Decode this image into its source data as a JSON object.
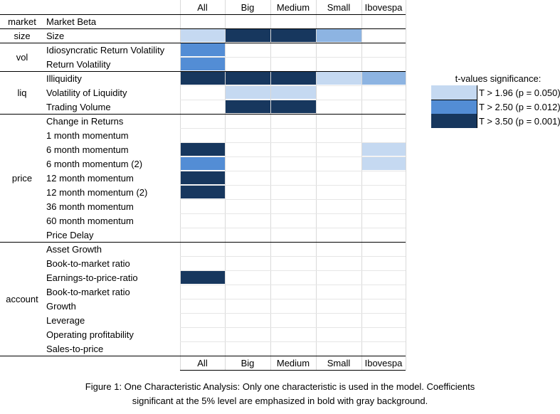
{
  "chart_data": {
    "type": "heatmap",
    "columns": [
      "All",
      "Big",
      "Medium",
      "Small",
      "Ibovespa"
    ],
    "groups": [
      {
        "name": "market",
        "rows": [
          "Market Beta"
        ]
      },
      {
        "name": "size",
        "rows": [
          "Size"
        ]
      },
      {
        "name": "vol",
        "rows": [
          "Idiosyncratic Return Volatility",
          "Return Volatility"
        ]
      },
      {
        "name": "liq",
        "rows": [
          "Illiquidity",
          "Volatility of Liquidity",
          "Trading Volume"
        ]
      },
      {
        "name": "price",
        "rows": [
          "Change in Returns",
          "1 month momentum",
          "6 month momentum",
          "6 month momentum (2)",
          "12 month momentum",
          "12 month momentum (2)",
          "36 month momentum",
          "60 month momentum",
          "Price Delay"
        ]
      },
      {
        "name": "account",
        "rows": [
          "Asset Growth",
          "Book-to-market ratio",
          "Earnings-to-price-ratio",
          "Book-to-market ratio",
          "Growth",
          "Leverage",
          "Operating profitability",
          "Sales-to-price"
        ]
      }
    ],
    "levels": [
      [
        0,
        0,
        0,
        0,
        0
      ],
      [
        1,
        3,
        3,
        2,
        0
      ],
      [
        2,
        0,
        0,
        0,
        0
      ],
      [
        2,
        0,
        0,
        0,
        0
      ],
      [
        3,
        3,
        3,
        1,
        2
      ],
      [
        0,
        1,
        1,
        0,
        0
      ],
      [
        0,
        3,
        3,
        0,
        0
      ],
      [
        0,
        0,
        0,
        0,
        0
      ],
      [
        0,
        0,
        0,
        0,
        0
      ],
      [
        3,
        0,
        0,
        0,
        1
      ],
      [
        2,
        0,
        0,
        0,
        1
      ],
      [
        3,
        0,
        0,
        0,
        0
      ],
      [
        3,
        0,
        0,
        0,
        0
      ],
      [
        0,
        0,
        0,
        0,
        0
      ],
      [
        0,
        0,
        0,
        0,
        0
      ],
      [
        0,
        0,
        0,
        0,
        0
      ],
      [
        0,
        0,
        0,
        0,
        0
      ],
      [
        0,
        0,
        0,
        0,
        0
      ],
      [
        3,
        0,
        0,
        0,
        0
      ],
      [
        0,
        0,
        0,
        0,
        0
      ],
      [
        0,
        0,
        0,
        0,
        0
      ],
      [
        0,
        0,
        0,
        0,
        0
      ],
      [
        0,
        0,
        0,
        0,
        0
      ],
      [
        0,
        0,
        0,
        0,
        0
      ]
    ],
    "legend": {
      "title": "t-values significance:",
      "entries": [
        {
          "label": "T > 1.96 (p = 0.050)",
          "color": "#c5d9f1"
        },
        {
          "label": "T > 2.50 (p = 0.012)",
          "color": "#538dd5"
        },
        {
          "label": "T > 3.50 (p = 0.001)",
          "color": "#17375e"
        }
      ],
      "placement": "right"
    },
    "shade_colors": [
      "#ffffff",
      "#c5d9f1",
      "#538dd5",
      "#17375e"
    ],
    "light_bar_color": "#8db4e2"
  },
  "caption": {
    "line1": "Figure 1: One Characteristic Analysis: Only one characteristic is used in the model. Coefficients",
    "line2": "significant at the 5% level are emphasized in bold with gray background."
  }
}
